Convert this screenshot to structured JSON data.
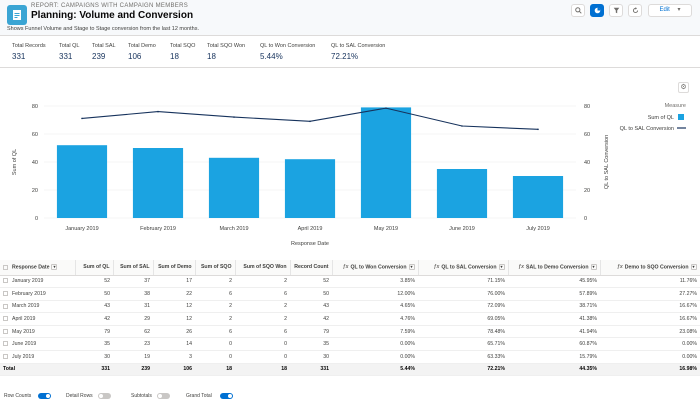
{
  "header": {
    "eyebrow": "REPORT: CAMPAIGNS WITH CAMPAIGN MEMBERS",
    "title": "Planning: Volume and Conversion",
    "subtitle": "Shows Funnel Volume and Stage to Stage conversion from the last 12 months.",
    "edit_label": "Edit"
  },
  "kpis": [
    {
      "label": "Total Records",
      "value": "331"
    },
    {
      "label": "Total QL",
      "value": "331"
    },
    {
      "label": "Total SAL",
      "value": "239"
    },
    {
      "label": "Total Demo",
      "value": "106"
    },
    {
      "label": "Total SQO",
      "value": "18"
    },
    {
      "label": "Total SQO Won",
      "value": "18"
    },
    {
      "label": "QL to Won Conversion",
      "value": "5.44%"
    },
    {
      "label": "QL to SAL Conversion",
      "value": "72.21%"
    }
  ],
  "chart_data": {
    "type": "bar",
    "categories": [
      "January 2019",
      "February 2019",
      "March 2019",
      "April 2019",
      "May 2019",
      "June 2019",
      "July 2019"
    ],
    "series": [
      {
        "name": "Sum of QL",
        "type": "bar",
        "axis": "left",
        "color": "#1ba3e1",
        "values": [
          52,
          50,
          43,
          42,
          79,
          35,
          30
        ]
      },
      {
        "name": "QL to SAL Conversion",
        "type": "line",
        "axis": "right",
        "color": "#16325c",
        "values": [
          71.15,
          76.0,
          72.09,
          69.05,
          78.48,
          65.71,
          63.33
        ]
      }
    ],
    "xlabel": "Response Date",
    "ylabel": "Sum of QL",
    "y2label": "QL to SAL Conversion",
    "ylim": [
      0,
      80
    ],
    "y2lim": [
      0,
      80
    ],
    "yticks": [
      "0",
      "20",
      "40",
      "60",
      "80"
    ],
    "y2ticks": [
      "0",
      "20",
      "40",
      "60",
      "80"
    ],
    "legend_title": "Measure",
    "legend_position": "top-right"
  },
  "table": {
    "headers": [
      "Response Date",
      "Sum of QL",
      "Sum of SAL",
      "Sum of Demo",
      "Sum of SQO",
      "Sum of SQO Won",
      "Record Count",
      "QL to Won Conversion",
      "QL to SAL Conversion",
      "SAL to Demo Conversion",
      "Demo to SQO Conversion"
    ],
    "rows": [
      [
        "January 2019",
        "52",
        "37",
        "17",
        "2",
        "2",
        "52",
        "3.85%",
        "71.15%",
        "45.95%",
        "11.76%"
      ],
      [
        "February 2019",
        "50",
        "38",
        "22",
        "6",
        "6",
        "50",
        "12.00%",
        "76.00%",
        "57.89%",
        "27.27%"
      ],
      [
        "March 2019",
        "43",
        "31",
        "12",
        "2",
        "2",
        "43",
        "4.65%",
        "72.09%",
        "38.71%",
        "16.67%"
      ],
      [
        "April 2019",
        "42",
        "29",
        "12",
        "2",
        "2",
        "42",
        "4.76%",
        "69.05%",
        "41.38%",
        "16.67%"
      ],
      [
        "May 2019",
        "79",
        "62",
        "26",
        "6",
        "6",
        "79",
        "7.59%",
        "78.48%",
        "41.94%",
        "23.08%"
      ],
      [
        "June 2019",
        "35",
        "23",
        "14",
        "0",
        "0",
        "35",
        "0.00%",
        "65.71%",
        "60.87%",
        "0.00%"
      ],
      [
        "July 2019",
        "30",
        "19",
        "3",
        "0",
        "0",
        "30",
        "0.00%",
        "63.33%",
        "15.79%",
        "0.00%"
      ]
    ],
    "total": [
      "Total",
      "331",
      "239",
      "106",
      "18",
      "18",
      "331",
      "5.44%",
      "72.21%",
      "44.35%",
      "16.98%"
    ]
  },
  "footer": {
    "row_counts": "Row Counts",
    "detail_rows": "Detail Rows",
    "subtotals": "Subtotals",
    "grand_total": "Grand Total"
  },
  "colors": {
    "accent": "#0070d2",
    "bar": "#1ba3e1",
    "line": "#16325c"
  }
}
